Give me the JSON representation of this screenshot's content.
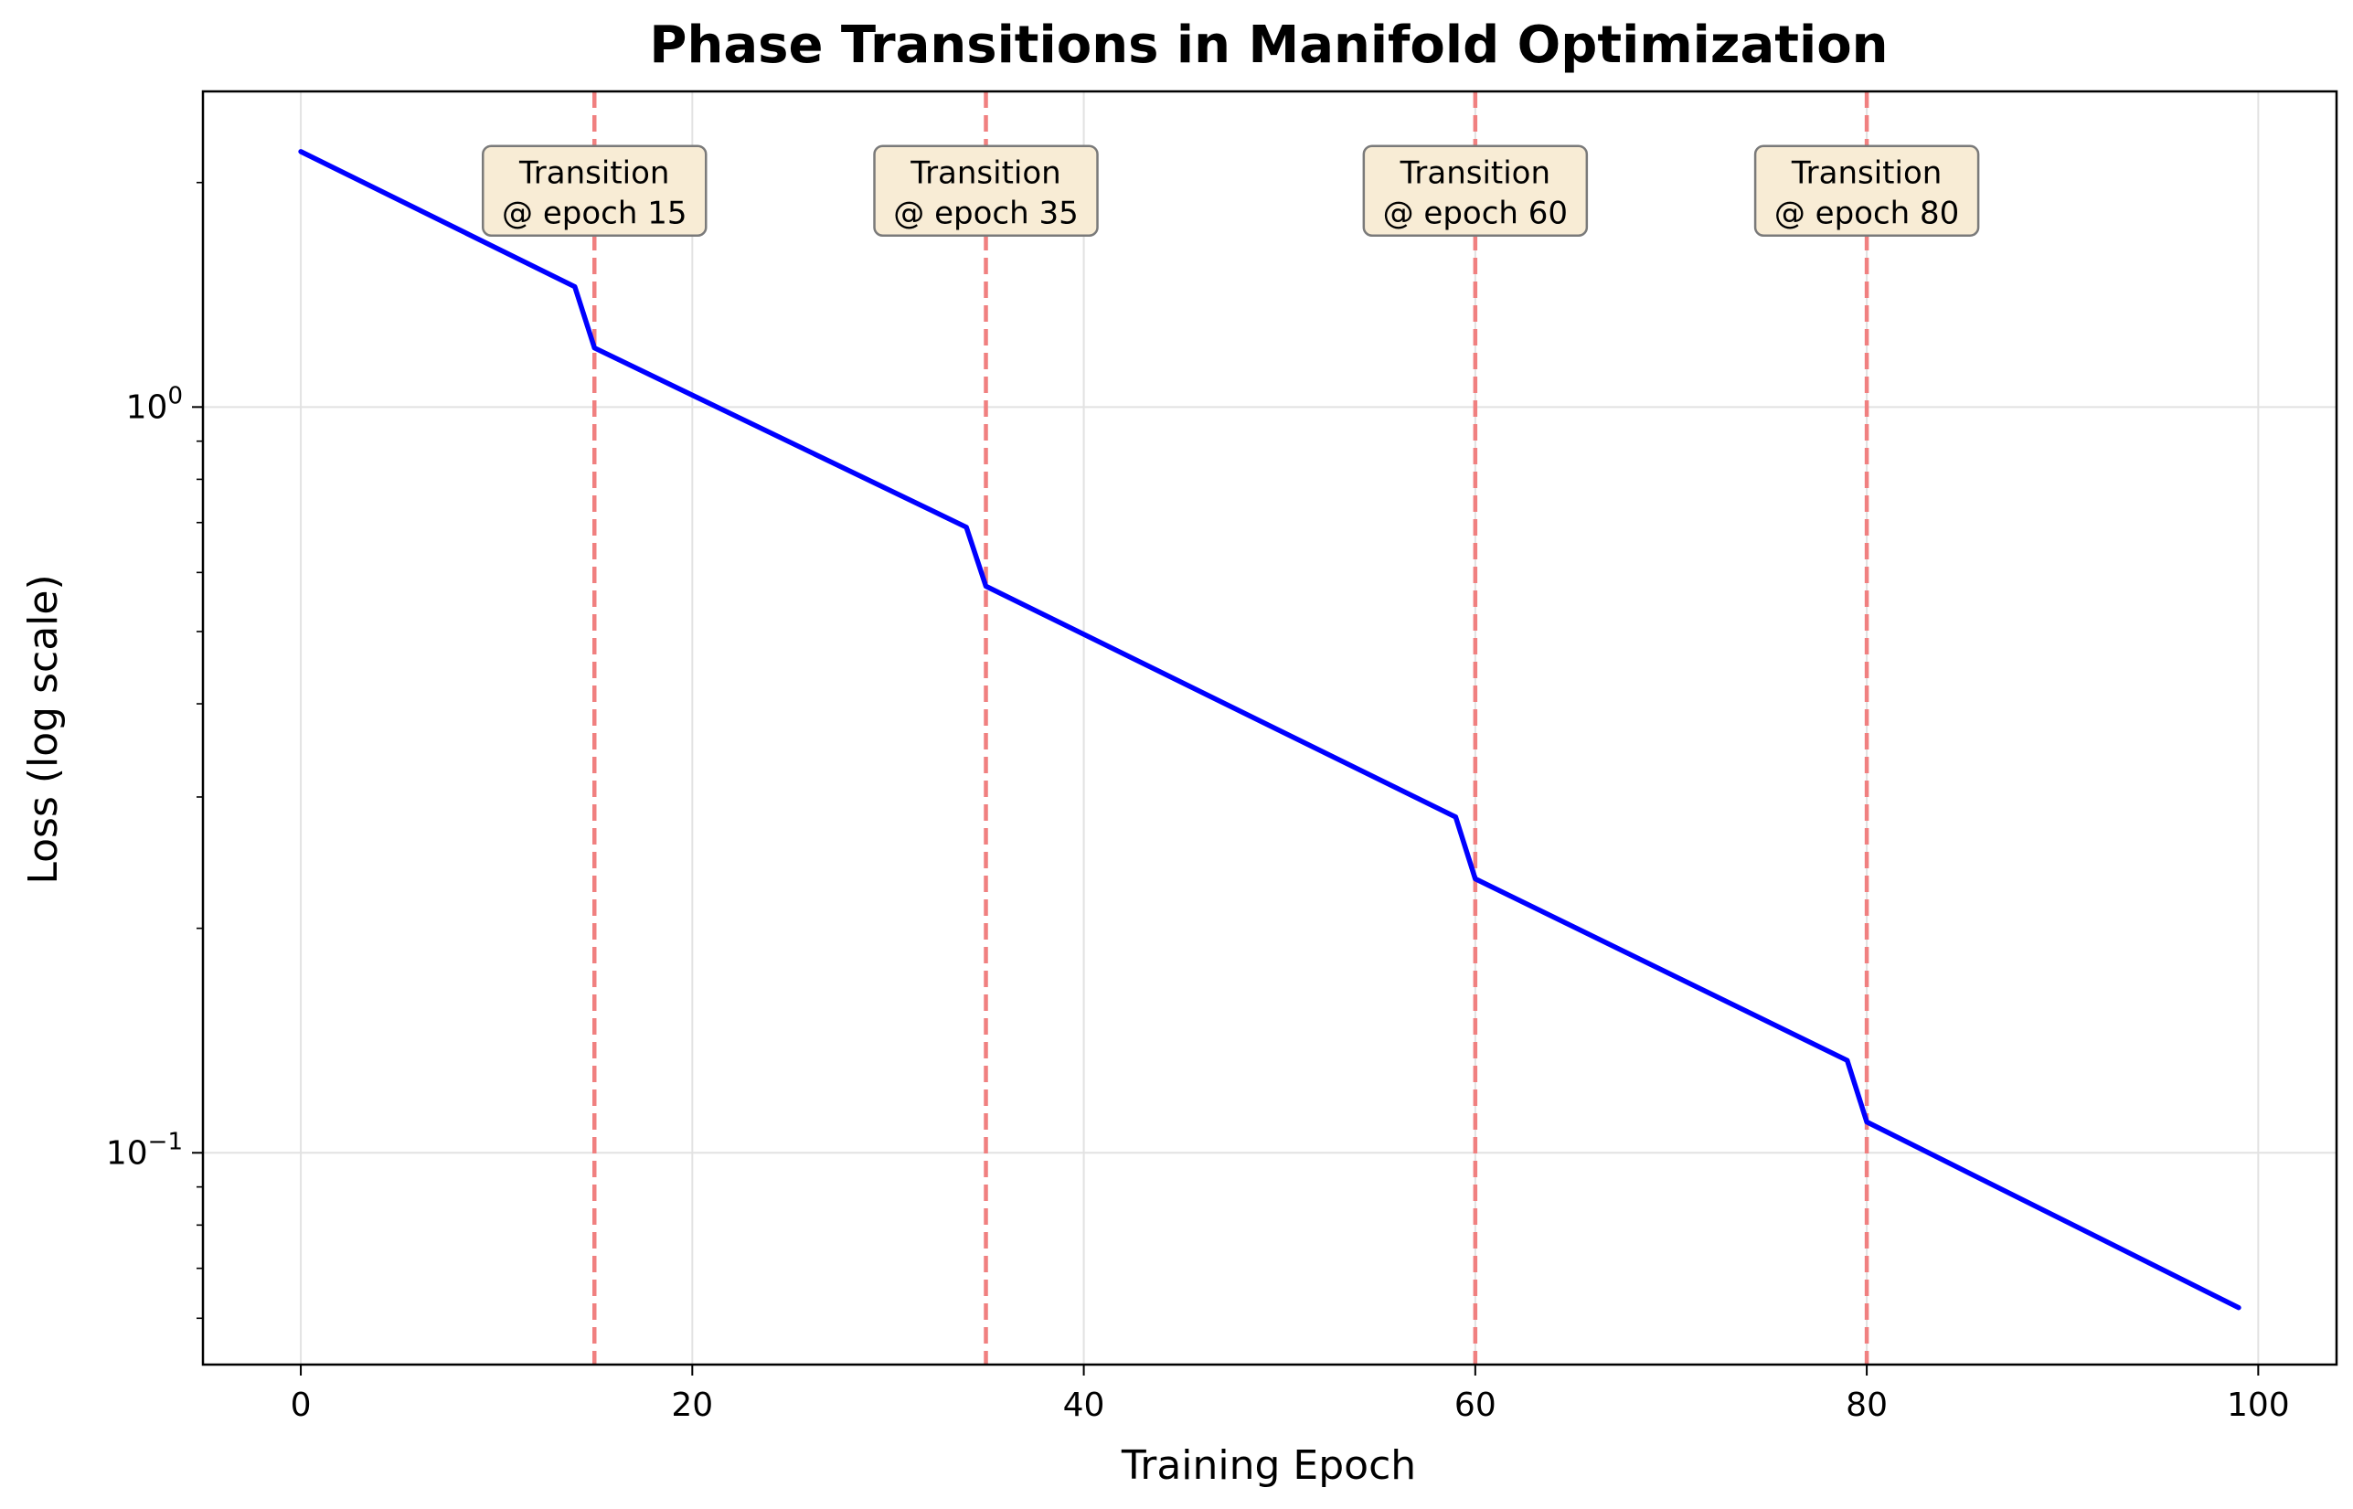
{
  "chart_data": {
    "type": "line",
    "title": "Phase Transitions in Manifold Optimization",
    "xlabel": "Training Epoch",
    "ylabel": "Loss (log scale)",
    "xlim": [
      -5,
      104
    ],
    "ylim": [
      0.052,
      2.65
    ],
    "yscale": "log",
    "grid": true,
    "x_ticks": [
      0,
      20,
      40,
      60,
      80,
      100
    ],
    "x_tick_labels": [
      "0",
      "20",
      "40",
      "60",
      "80",
      "100"
    ],
    "y_ticks": [
      {
        "value": 1.0,
        "base": "10",
        "exp": "0"
      },
      {
        "value": 0.1,
        "base": "10",
        "exp": "−1"
      }
    ],
    "y_minor_ticks": [
      0.06,
      0.07,
      0.08,
      0.09,
      0.2,
      0.3,
      0.4,
      0.5,
      0.6,
      0.7,
      0.8,
      0.9,
      2
    ],
    "series": [
      {
        "color": "#0000ff",
        "x": [
          0,
          14,
          15,
          34,
          35,
          59,
          60,
          79,
          80,
          99
        ],
        "y": [
          2.2,
          1.45,
          1.2,
          0.69,
          0.575,
          0.282,
          0.233,
          0.133,
          0.11,
          0.062
        ]
      }
    ],
    "transitions": [
      {
        "epoch": 15,
        "line1": "Transition",
        "line2": "@ epoch 15"
      },
      {
        "epoch": 35,
        "line1": "Transition",
        "line2": "@ epoch 35"
      },
      {
        "epoch": 60,
        "line1": "Transition",
        "line2": "@ epoch 60"
      },
      {
        "epoch": 80,
        "line1": "Transition",
        "line2": "@ epoch 80"
      }
    ],
    "annotation_y": 1.95,
    "transition_line_color": "#f08080",
    "annotation_fill": "#f8ecd5",
    "annotation_border": "#7a7a7a",
    "grid_color": "#e2e2e2"
  }
}
